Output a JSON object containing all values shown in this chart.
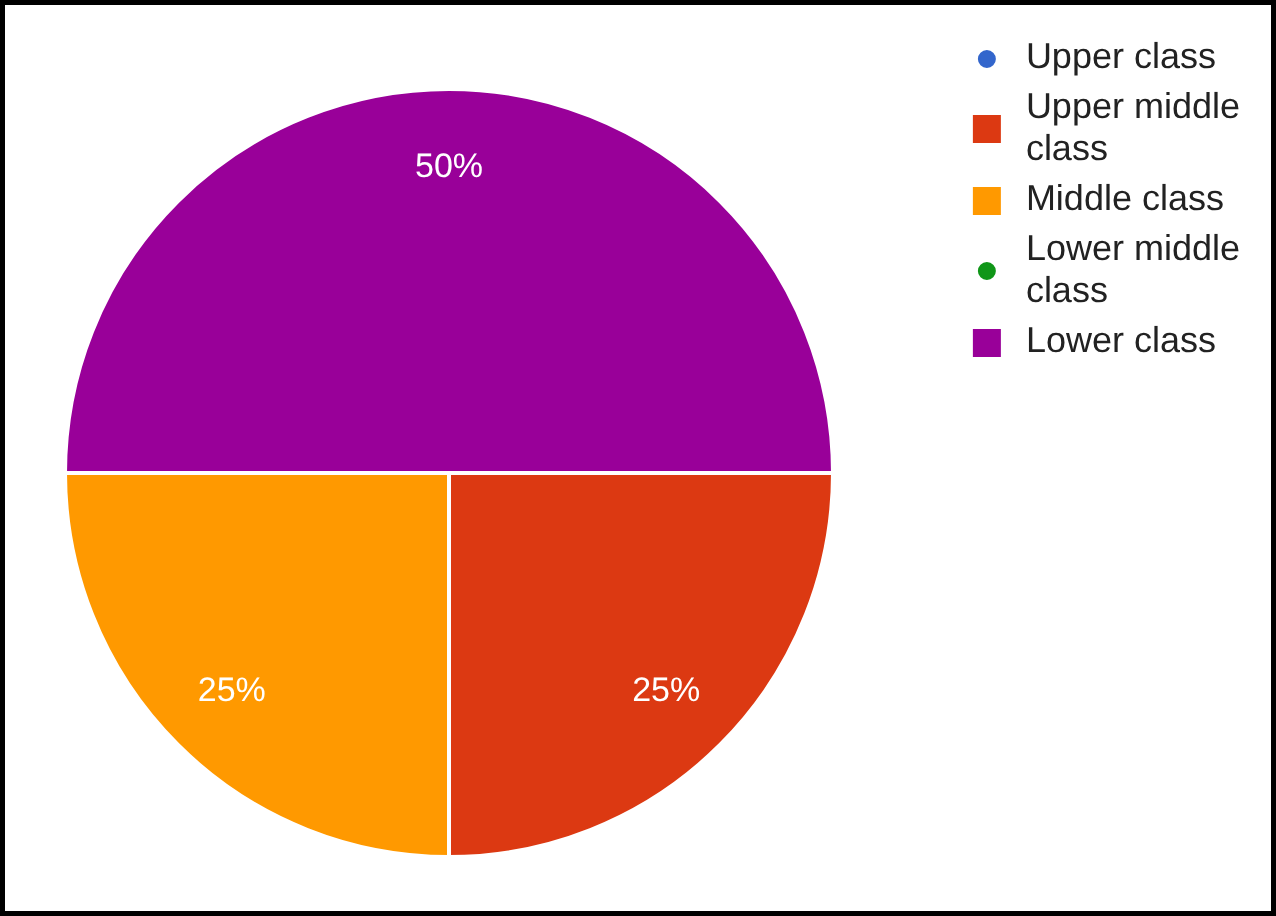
{
  "chart_data": {
    "type": "pie",
    "categories": [
      "Upper class",
      "Upper middle class",
      "Middle class",
      "Lower middle class",
      "Lower class"
    ],
    "values": [
      0,
      25,
      25,
      0,
      50
    ],
    "colors": [
      "#3366cc",
      "#dc3912",
      "#ff9900",
      "#109618",
      "#990099"
    ],
    "value_labels": [
      null,
      "25%",
      "25%",
      null,
      "50%"
    ],
    "legend": "top right"
  }
}
